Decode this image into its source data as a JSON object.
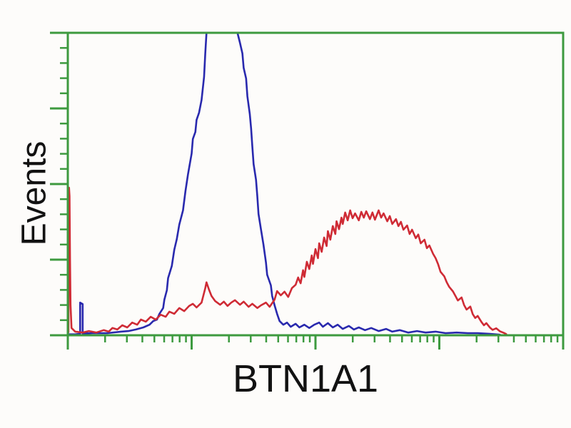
{
  "figure": {
    "type": "flow-cytometry-overlay-histogram",
    "x_axis_label": "BTN1A1",
    "y_axis_label": "Events"
  },
  "colors": {
    "axis_green": "#3d9a3f",
    "series_blue": "#2929ae",
    "series_red": "#cf2b35",
    "text": "#121212",
    "background": "#fdfcfa"
  },
  "chart_data": {
    "type": "line",
    "title": "",
    "xlabel": "BTN1A1",
    "ylabel": "Events",
    "x_scale": "log10",
    "x_units": "log fluorescence intensity, decades (ticks unlabeled)",
    "y_units": "relative event count (ticks unlabeled)",
    "xlim": [
      0,
      4
    ],
    "ylim": [
      0,
      100
    ],
    "x_major_ticks": [
      0,
      1,
      2,
      3,
      4
    ],
    "x_minor_ticks": "log10(2..9) within each decade",
    "y_major_ticks": [
      0,
      25,
      50,
      75,
      100
    ],
    "y_minor_tick_step": 5,
    "grid": false,
    "legend": "none",
    "series": [
      {
        "id": "blue-series",
        "name": "blue histogram (narrow peak, clipped at top of axis)",
        "color": "#2929ae",
        "peak_x_decade": 1.25,
        "clipped_at_top": true,
        "points": [
          [
            0.0,
            0.3
          ],
          [
            0.06,
            0.3
          ],
          [
            0.1,
            0.5
          ],
          [
            0.1,
            10.8
          ],
          [
            0.12,
            10.3
          ],
          [
            0.12,
            0.6
          ],
          [
            0.2,
            0.7
          ],
          [
            0.32,
            0.7
          ],
          [
            0.43,
            1.2
          ],
          [
            0.49,
            1.4
          ],
          [
            0.55,
            1.9
          ],
          [
            0.61,
            2.6
          ],
          [
            0.66,
            3.5
          ],
          [
            0.69,
            4.7
          ],
          [
            0.72,
            5.2
          ],
          [
            0.74,
            7.1
          ],
          [
            0.77,
            9.0
          ],
          [
            0.78,
            11.8
          ],
          [
            0.8,
            14.9
          ],
          [
            0.81,
            18.9
          ],
          [
            0.84,
            22.9
          ],
          [
            0.86,
            28.3
          ],
          [
            0.88,
            31.8
          ],
          [
            0.9,
            36.6
          ],
          [
            0.93,
            41.3
          ],
          [
            0.95,
            47.6
          ],
          [
            0.97,
            53.1
          ],
          [
            1.0,
            60.1
          ],
          [
            1.01,
            64.9
          ],
          [
            1.03,
            67.2
          ],
          [
            1.04,
            71.2
          ],
          [
            1.06,
            73.6
          ],
          [
            1.08,
            77.8
          ],
          [
            1.1,
            85.4
          ],
          [
            1.11,
            93.2
          ],
          [
            1.12,
            100
          ],
          [
            1.37,
            100
          ],
          [
            1.39,
            96.7
          ],
          [
            1.41,
            93.2
          ],
          [
            1.42,
            88.4
          ],
          [
            1.44,
            84.9
          ],
          [
            1.45,
            79.0
          ],
          [
            1.47,
            73.1
          ],
          [
            1.48,
            68.4
          ],
          [
            1.49,
            62.5
          ],
          [
            1.5,
            56.6
          ],
          [
            1.52,
            51.4
          ],
          [
            1.53,
            46.0
          ],
          [
            1.54,
            40.1
          ],
          [
            1.56,
            34.9
          ],
          [
            1.58,
            30.0
          ],
          [
            1.6,
            24.1
          ],
          [
            1.61,
            20.0
          ],
          [
            1.64,
            16.5
          ],
          [
            1.65,
            13.0
          ],
          [
            1.67,
            9.9
          ],
          [
            1.69,
            7.1
          ],
          [
            1.71,
            4.7
          ],
          [
            1.74,
            3.5
          ],
          [
            1.77,
            4.2
          ],
          [
            1.8,
            2.8
          ],
          [
            1.84,
            3.8
          ],
          [
            1.87,
            2.6
          ],
          [
            1.91,
            3.5
          ],
          [
            1.95,
            2.4
          ],
          [
            1.99,
            3.5
          ],
          [
            2.03,
            4.2
          ],
          [
            2.06,
            2.8
          ],
          [
            2.1,
            4.0
          ],
          [
            2.14,
            2.6
          ],
          [
            2.18,
            3.5
          ],
          [
            2.22,
            2.1
          ],
          [
            2.27,
            3.1
          ],
          [
            2.31,
            1.9
          ],
          [
            2.35,
            2.6
          ],
          [
            2.4,
            1.7
          ],
          [
            2.45,
            2.4
          ],
          [
            2.51,
            1.4
          ],
          [
            2.57,
            2.1
          ],
          [
            2.62,
            1.2
          ],
          [
            2.68,
            1.7
          ],
          [
            2.75,
            0.9
          ],
          [
            2.82,
            1.4
          ],
          [
            2.89,
            0.9
          ],
          [
            2.97,
            1.2
          ],
          [
            3.05,
            0.7
          ],
          [
            3.14,
            0.9
          ],
          [
            3.23,
            0.7
          ],
          [
            3.31,
            0.7
          ],
          [
            3.4,
            0.5
          ],
          [
            3.49,
            0.2
          ]
        ]
      },
      {
        "id": "red-series",
        "name": "red histogram (broad shifted peak, spike at axis origin)",
        "color": "#cf2b35",
        "peak_x_decade": 2.4,
        "clipped_at_top": false,
        "points": [
          [
            0.005,
            1.0
          ],
          [
            0.008,
            44.0
          ],
          [
            0.01,
            48.8
          ],
          [
            0.014,
            46.0
          ],
          [
            0.018,
            25.0
          ],
          [
            0.022,
            10.0
          ],
          [
            0.03,
            2.4
          ],
          [
            0.06,
            1.2
          ],
          [
            0.12,
            0.9
          ],
          [
            0.17,
            1.4
          ],
          [
            0.23,
            0.9
          ],
          [
            0.29,
            1.7
          ],
          [
            0.33,
            1.2
          ],
          [
            0.36,
            2.4
          ],
          [
            0.4,
            1.9
          ],
          [
            0.44,
            3.3
          ],
          [
            0.48,
            2.6
          ],
          [
            0.52,
            4.2
          ],
          [
            0.56,
            3.5
          ],
          [
            0.59,
            5.2
          ],
          [
            0.63,
            4.5
          ],
          [
            0.67,
            6.1
          ],
          [
            0.71,
            5.2
          ],
          [
            0.75,
            6.8
          ],
          [
            0.79,
            6.1
          ],
          [
            0.82,
            7.8
          ],
          [
            0.86,
            7.1
          ],
          [
            0.9,
            9.0
          ],
          [
            0.94,
            8.0
          ],
          [
            0.98,
            9.7
          ],
          [
            1.01,
            10.4
          ],
          [
            1.04,
            9.2
          ],
          [
            1.08,
            10.8
          ],
          [
            1.11,
            15.6
          ],
          [
            1.12,
            17.5
          ],
          [
            1.14,
            15.1
          ],
          [
            1.16,
            13.0
          ],
          [
            1.19,
            11.3
          ],
          [
            1.23,
            10.1
          ],
          [
            1.26,
            11.1
          ],
          [
            1.29,
            9.7
          ],
          [
            1.32,
            10.8
          ],
          [
            1.35,
            11.6
          ],
          [
            1.39,
            10.1
          ],
          [
            1.42,
            11.1
          ],
          [
            1.46,
            9.4
          ],
          [
            1.49,
            10.4
          ],
          [
            1.53,
            9.0
          ],
          [
            1.56,
            9.9
          ],
          [
            1.6,
            10.8
          ],
          [
            1.63,
            9.4
          ],
          [
            1.67,
            11.8
          ],
          [
            1.69,
            14.6
          ],
          [
            1.72,
            13.2
          ],
          [
            1.75,
            14.4
          ],
          [
            1.78,
            12.7
          ],
          [
            1.81,
            15.6
          ],
          [
            1.84,
            16.7
          ],
          [
            1.86,
            19.1
          ],
          [
            1.88,
            17.2
          ],
          [
            1.9,
            21.5
          ],
          [
            1.91,
            19.3
          ],
          [
            1.93,
            24.3
          ],
          [
            1.95,
            21.9
          ],
          [
            1.97,
            26.4
          ],
          [
            1.98,
            23.6
          ],
          [
            2.0,
            28.5
          ],
          [
            2.02,
            25.5
          ],
          [
            2.03,
            30.4
          ],
          [
            2.05,
            27.6
          ],
          [
            2.07,
            32.3
          ],
          [
            2.09,
            29.5
          ],
          [
            2.1,
            34.4
          ],
          [
            2.12,
            31.6
          ],
          [
            2.14,
            36.1
          ],
          [
            2.16,
            33.5
          ],
          [
            2.17,
            37.7
          ],
          [
            2.19,
            35.1
          ],
          [
            2.21,
            38.9
          ],
          [
            2.22,
            36.8
          ],
          [
            2.24,
            40.6
          ],
          [
            2.26,
            38.0
          ],
          [
            2.28,
            41.3
          ],
          [
            2.3,
            38.7
          ],
          [
            2.32,
            40.3
          ],
          [
            2.35,
            38.0
          ],
          [
            2.37,
            40.8
          ],
          [
            2.39,
            38.9
          ],
          [
            2.41,
            41.0
          ],
          [
            2.44,
            38.4
          ],
          [
            2.46,
            40.6
          ],
          [
            2.48,
            38.2
          ],
          [
            2.51,
            41.3
          ],
          [
            2.53,
            38.9
          ],
          [
            2.55,
            40.3
          ],
          [
            2.58,
            37.7
          ],
          [
            2.6,
            39.4
          ],
          [
            2.62,
            36.8
          ],
          [
            2.65,
            38.4
          ],
          [
            2.67,
            36.1
          ],
          [
            2.69,
            37.5
          ],
          [
            2.71,
            34.9
          ],
          [
            2.74,
            36.3
          ],
          [
            2.76,
            33.5
          ],
          [
            2.78,
            34.9
          ],
          [
            2.81,
            32.1
          ],
          [
            2.83,
            33.3
          ],
          [
            2.85,
            30.4
          ],
          [
            2.88,
            31.6
          ],
          [
            2.9,
            28.8
          ],
          [
            2.92,
            29.7
          ],
          [
            2.95,
            26.9
          ],
          [
            2.97,
            25.5
          ],
          [
            2.99,
            23.5
          ],
          [
            3.01,
            21.0
          ],
          [
            3.04,
            19.5
          ],
          [
            3.06,
            17.5
          ],
          [
            3.08,
            16.0
          ],
          [
            3.11,
            14.5
          ],
          [
            3.13,
            13.0
          ],
          [
            3.15,
            11.5
          ],
          [
            3.18,
            12.5
          ],
          [
            3.2,
            10.0
          ],
          [
            3.22,
            8.5
          ],
          [
            3.25,
            9.5
          ],
          [
            3.27,
            7.0
          ],
          [
            3.29,
            5.7
          ],
          [
            3.31,
            6.4
          ],
          [
            3.34,
            4.4
          ],
          [
            3.36,
            3.3
          ],
          [
            3.38,
            4.0
          ],
          [
            3.41,
            2.5
          ],
          [
            3.43,
            1.8
          ],
          [
            3.46,
            2.3
          ],
          [
            3.49,
            1.3
          ],
          [
            3.52,
            0.8
          ],
          [
            3.54,
            0.4
          ]
        ]
      }
    ]
  }
}
